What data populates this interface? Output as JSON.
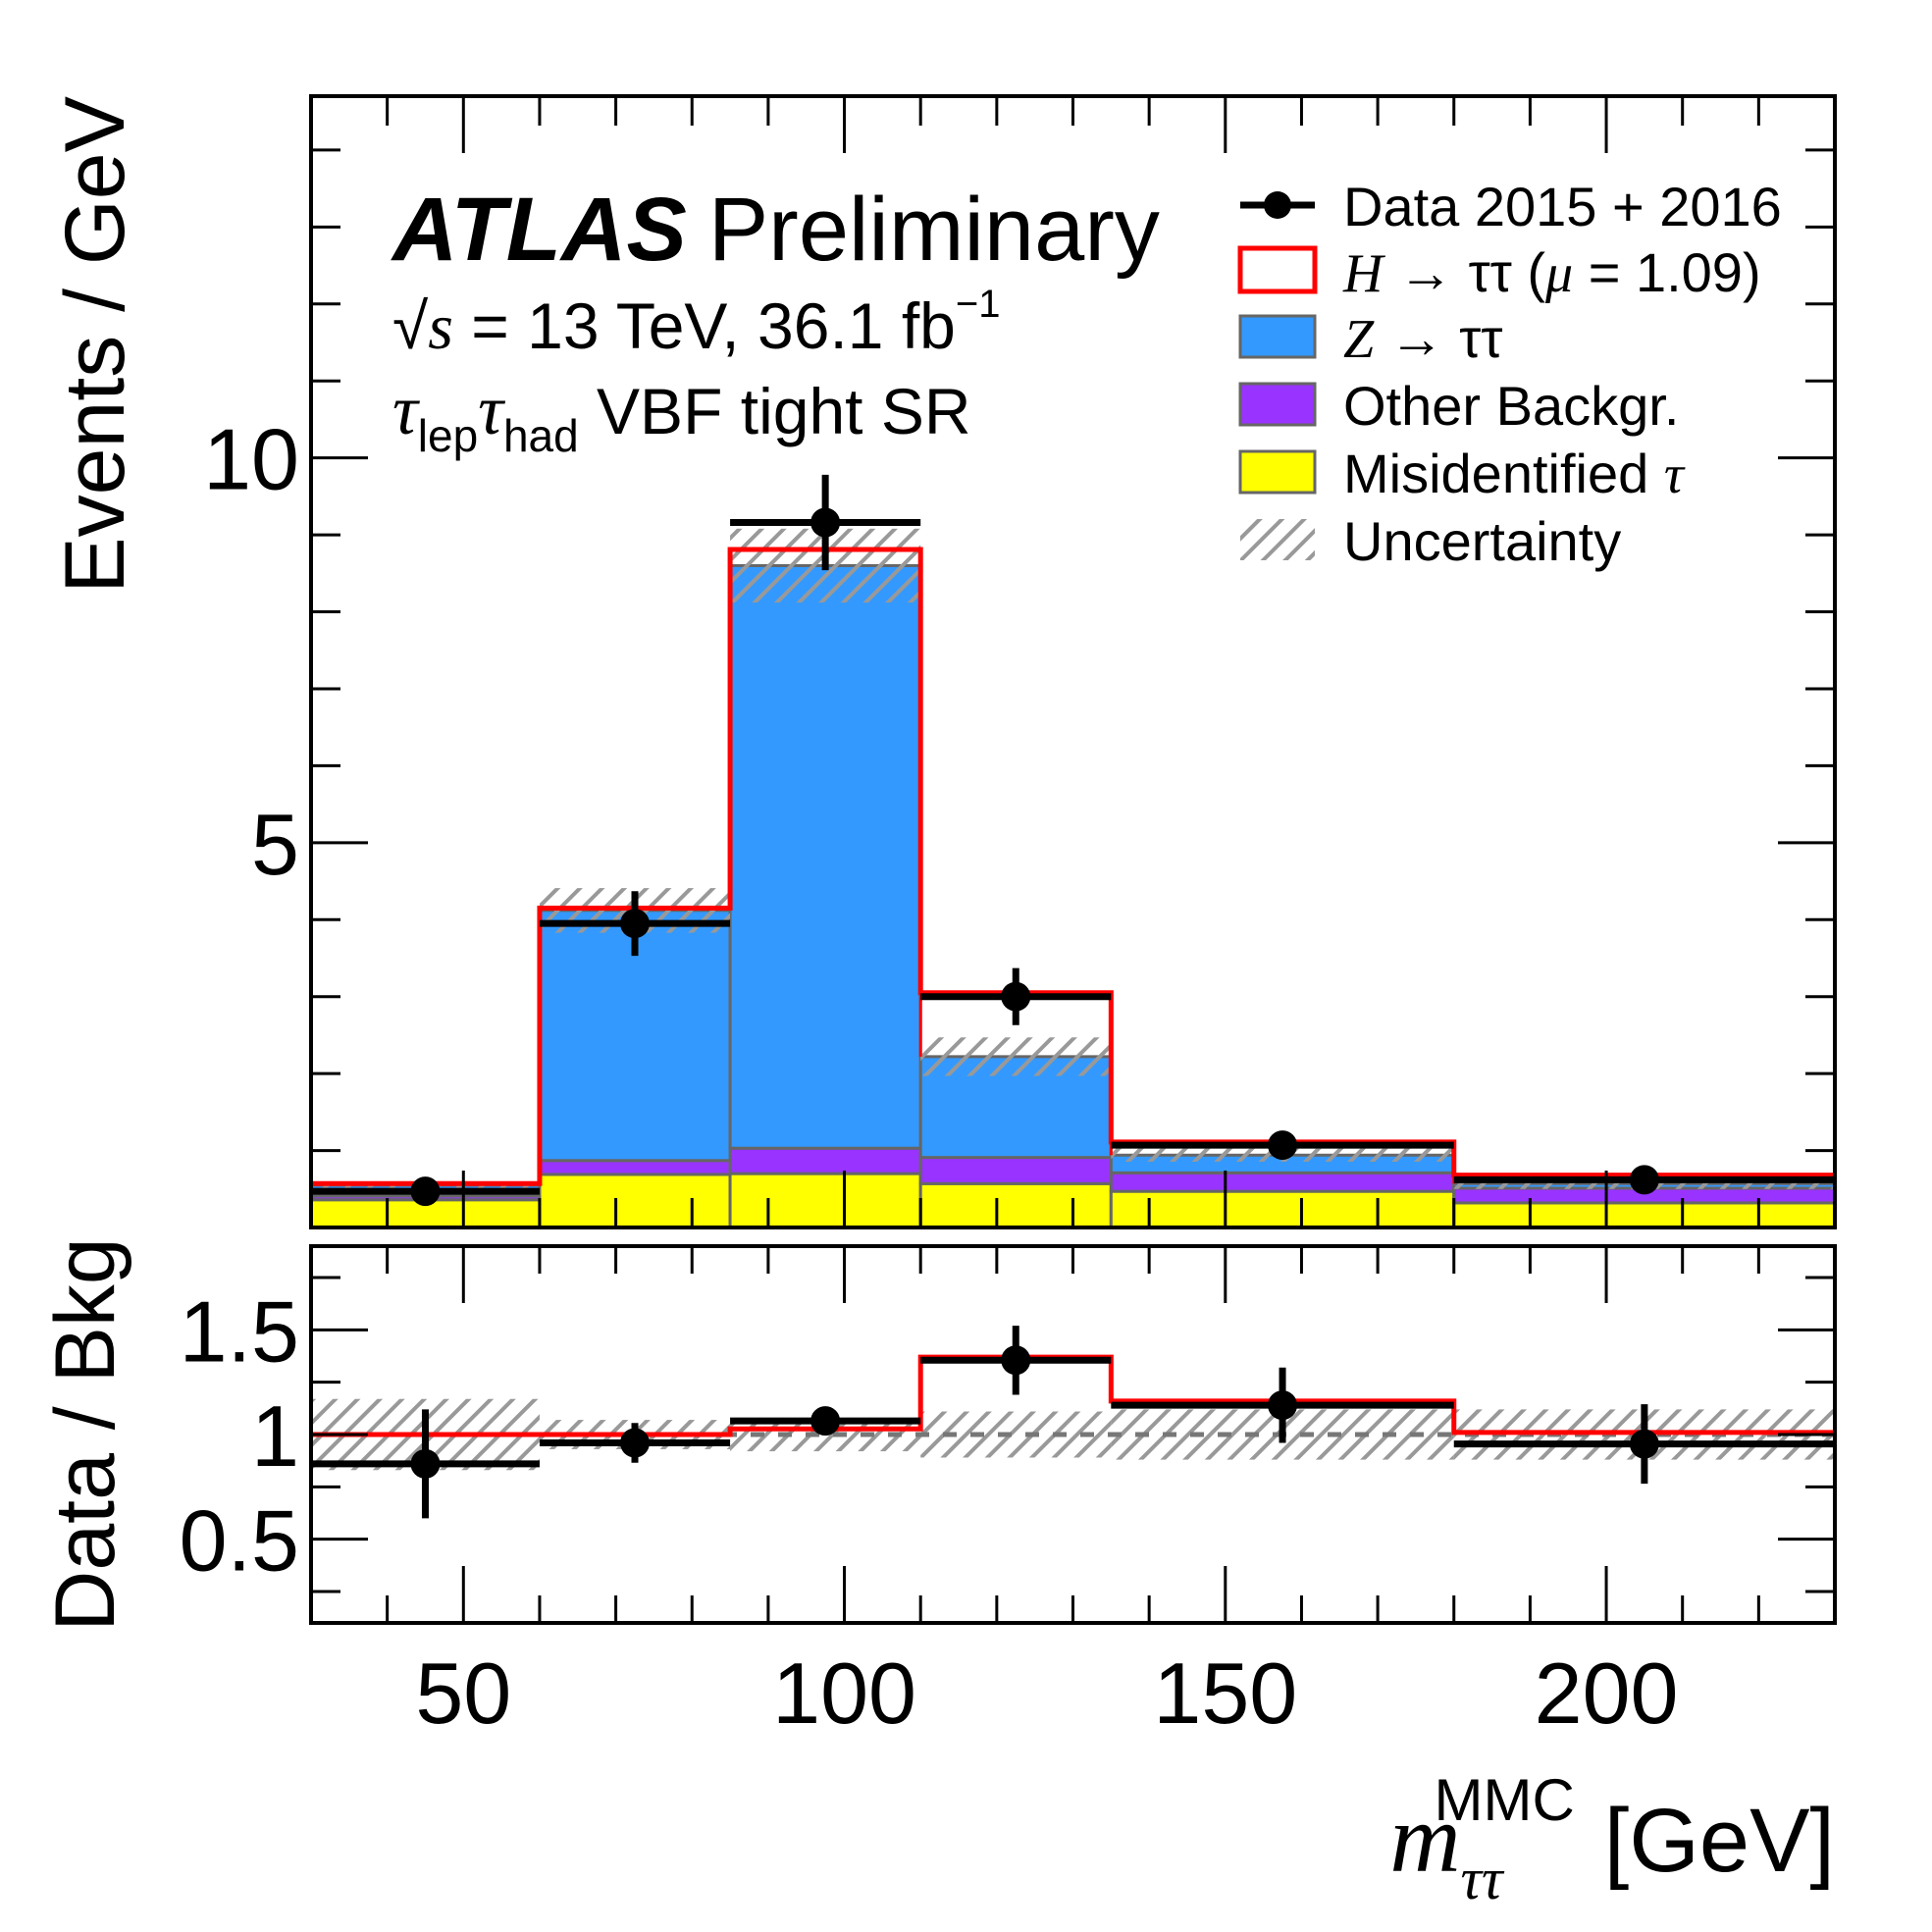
{
  "chart_data": {
    "type": "bar",
    "subtype": "stacked-histogram-with-ratio",
    "title": "ATLAS Preliminary",
    "annotations": {
      "experiment": "ATLAS",
      "status": "Preliminary",
      "energy_lumi": "√s = 13 TeV, 36.1 fb⁻¹",
      "energy_lumi_parts": {
        "sqrt": "√",
        "s": "s",
        "eq": " = 13 TeV, 36.1 fb",
        "sup": "−1"
      },
      "region_parts": {
        "tau1": "τ",
        "sub1": "lep",
        "tau2": "τ",
        "sub2": "had",
        "text": " VBF tight SR"
      }
    },
    "xlabel": "m_ττ^MMC [GeV]",
    "xlabel_parts": {
      "m": "m",
      "sub": "ττ",
      "sup": "MMC",
      "unit": "[GeV]"
    },
    "ylabel": "Events / GeV",
    "ratio_ylabel": "Data / Bkg",
    "xlim": [
      30,
      230
    ],
    "ylim": [
      0,
      14.7
    ],
    "ratio_ylim": [
      0.1,
      1.9
    ],
    "x_ticks": [
      50,
      100,
      150,
      200
    ],
    "x_tick_labels": [
      "50",
      "100",
      "150",
      "200"
    ],
    "y_ticks": [
      5,
      10
    ],
    "y_tick_labels": [
      "5",
      "10"
    ],
    "ratio_y_ticks": [
      0.5,
      1,
      1.5
    ],
    "ratio_y_tick_labels": [
      "0.5",
      "1",
      "1.5"
    ],
    "bin_edges": [
      30,
      60,
      85,
      110,
      135,
      180,
      230
    ],
    "series": [
      {
        "name": "Misidentified τ",
        "kind": "stack",
        "color": "#FFFF00",
        "values": [
          0.36,
          0.69,
          0.7,
          0.57,
          0.47,
          0.32
        ]
      },
      {
        "name": "Other Backgr.",
        "kind": "stack",
        "color": "#9933FF",
        "values": [
          0.05,
          0.18,
          0.33,
          0.34,
          0.24,
          0.19
        ]
      },
      {
        "name": "Z → ττ",
        "kind": "stack",
        "color": "#3399FF",
        "values": [
          0.14,
          3.25,
          7.57,
          1.31,
          0.23,
          0.06
        ]
      },
      {
        "name": "H → ττ (μ = 1.09)",
        "kind": "signal-outline",
        "color": "#FF0000",
        "values": [
          0.02,
          0.03,
          0.21,
          0.83,
          0.17,
          0.11
        ]
      }
    ],
    "uncertainty": {
      "name": "Uncertainty",
      "color": "#999999",
      "values": [
        0.05,
        0.29,
        0.48,
        0.25,
        0.085,
        0.07
      ]
    },
    "data": {
      "name": "Data 2015 + 2016",
      "x": [
        45,
        72.5,
        97.5,
        122.5,
        157.5,
        205
      ],
      "values": [
        0.47,
        3.95,
        9.16,
        3.0,
        1.07,
        0.62
      ],
      "errors": [
        0.12,
        0.42,
        0.62,
        0.37,
        0.15,
        0.12
      ]
    },
    "ratio": {
      "data_values": [
        0.86,
        0.96,
        1.065,
        1.355,
        1.14,
        0.955
      ],
      "data_errors": [
        0.26,
        0.095,
        0.05,
        0.165,
        0.18,
        0.19
      ],
      "signal_values": [
        1.0,
        1.0,
        1.027,
        1.37,
        1.16,
        1.01
      ],
      "uncertainty": [
        0.17,
        0.07,
        0.08,
        0.11,
        0.12,
        0.12
      ]
    },
    "legend": {
      "placement": "top-right",
      "items": [
        {
          "label": "Data 2015 + 2016",
          "marker": "point"
        },
        {
          "label_parts": [
            "H",
            " → ττ (",
            "μ",
            " = 1.09)"
          ],
          "label": "H → ττ (μ = 1.09)",
          "marker": "outline",
          "color": "#FF0000"
        },
        {
          "label_parts": [
            "Z",
            " → ττ"
          ],
          "label": "Z → ττ",
          "marker": "fill",
          "color": "#3399FF"
        },
        {
          "label": "Other Backgr.",
          "marker": "fill",
          "color": "#9933FF"
        },
        {
          "label_parts": [
            "Misidentified ",
            "τ"
          ],
          "label": "Misidentified τ",
          "marker": "fill",
          "color": "#FFFF00"
        },
        {
          "label": "Uncertainty",
          "marker": "hatch"
        }
      ]
    },
    "grid": false
  }
}
